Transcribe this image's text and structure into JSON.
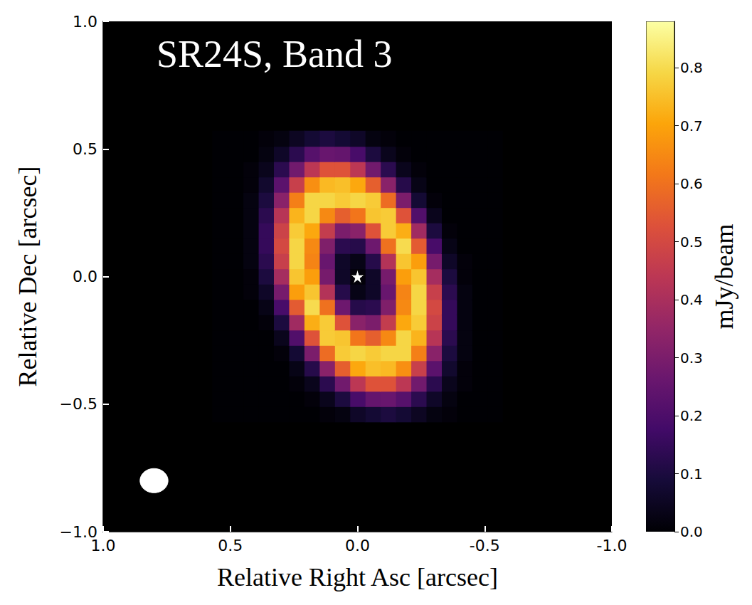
{
  "chart_data": {
    "type": "heatmap",
    "title": "SR24S, Band 3",
    "x_label": "Relative Right Asc [arcsec]",
    "y_label": "Relative Dec [arcsec]",
    "xlim": [
      1,
      -1
    ],
    "xticks": [
      {
        "value": 1,
        "label": "1.0"
      },
      0.5,
      {
        "value": 0,
        "label": "0.0"
      },
      -0.5,
      {
        "value": -1,
        "label": "-1.0"
      }
    ],
    "ylim": [
      -1,
      1
    ],
    "yticks": [
      {
        "value": -1,
        "label": "−1.0"
      },
      {
        "value": -0.5,
        "label": "−0.5"
      },
      {
        "value": 0,
        "label": "0.0"
      },
      0.5,
      {
        "value": 1,
        "label": "1.0"
      }
    ],
    "grid": false,
    "cells": {
      "x": [
        -0.54,
        -0.48,
        -0.42,
        -0.36,
        -0.3,
        -0.24,
        -0.18,
        -0.12,
        -0.06,
        0,
        0.06,
        0.12,
        0.18,
        0.24,
        0.3,
        0.36,
        0.42,
        0.48,
        0.54
      ],
      "y": [
        -0.54,
        -0.48,
        -0.42,
        -0.36,
        -0.3,
        -0.24,
        -0.18,
        -0.12,
        -0.06,
        0,
        0.06,
        0.12,
        0.18,
        0.24,
        0.3,
        0.36,
        0.42,
        0.48,
        0.54
      ],
      "values": [
        [
          0,
          0,
          0,
          0.01,
          0.02,
          0.05,
          0.08,
          0.1,
          0.08,
          0.06,
          0.02,
          0.01,
          0,
          0,
          0,
          0,
          0,
          0,
          0
        ],
        [
          0,
          0,
          0,
          0.02,
          0.06,
          0.13,
          0.22,
          0.26,
          0.25,
          0.19,
          0.1,
          0.04,
          0.01,
          0,
          0,
          0,
          0,
          0,
          0
        ],
        [
          0,
          0,
          0.01,
          0.04,
          0.13,
          0.28,
          0.44,
          0.53,
          0.53,
          0.44,
          0.28,
          0.13,
          0.04,
          0.01,
          0,
          0,
          0,
          0,
          0
        ],
        [
          0,
          0,
          0.01,
          0.07,
          0.23,
          0.47,
          0.66,
          0.74,
          0.75,
          0.71,
          0.56,
          0.33,
          0.12,
          0.03,
          0,
          0,
          0,
          0,
          0
        ],
        [
          0,
          0,
          0.02,
          0.1,
          0.33,
          0.63,
          0.79,
          0.79,
          0.77,
          0.79,
          0.77,
          0.59,
          0.3,
          0.08,
          0.01,
          0,
          0,
          0,
          0
        ],
        [
          0,
          0,
          0.02,
          0.13,
          0.43,
          0.73,
          0.79,
          0.65,
          0.56,
          0.61,
          0.76,
          0.77,
          0.53,
          0.21,
          0.04,
          0,
          0,
          0,
          0
        ],
        [
          0,
          0,
          0.02,
          0.15,
          0.48,
          0.77,
          0.71,
          0.46,
          0.3,
          0.33,
          0.53,
          0.77,
          0.72,
          0.38,
          0.1,
          0.01,
          0,
          0,
          0
        ],
        [
          0,
          0,
          0.02,
          0.15,
          0.5,
          0.79,
          0.65,
          0.31,
          0.13,
          0.12,
          0.27,
          0.6,
          0.8,
          0.55,
          0.19,
          0.03,
          0,
          0,
          0
        ],
        [
          0,
          0,
          0.02,
          0.13,
          0.47,
          0.79,
          0.64,
          0.26,
          0.06,
          0.03,
          0.12,
          0.42,
          0.76,
          0.69,
          0.29,
          0.06,
          0.01,
          0,
          0
        ],
        [
          0,
          0,
          0.01,
          0.1,
          0.39,
          0.76,
          0.69,
          0.29,
          0.06,
          0.01,
          0.06,
          0.29,
          0.69,
          0.76,
          0.39,
          0.1,
          0.01,
          0,
          0
        ],
        [
          0,
          0,
          0.01,
          0.06,
          0.29,
          0.69,
          0.76,
          0.42,
          0.12,
          0.03,
          0.06,
          0.26,
          0.64,
          0.79,
          0.47,
          0.13,
          0.02,
          0,
          0
        ],
        [
          0,
          0,
          0,
          0.03,
          0.19,
          0.55,
          0.8,
          0.6,
          0.27,
          0.12,
          0.13,
          0.31,
          0.65,
          0.79,
          0.5,
          0.15,
          0.02,
          0,
          0
        ],
        [
          0,
          0,
          0,
          0.01,
          0.1,
          0.38,
          0.72,
          0.77,
          0.53,
          0.33,
          0.3,
          0.46,
          0.71,
          0.77,
          0.48,
          0.15,
          0.02,
          0,
          0
        ],
        [
          0,
          0,
          0,
          0,
          0.04,
          0.21,
          0.53,
          0.77,
          0.76,
          0.61,
          0.56,
          0.65,
          0.79,
          0.73,
          0.43,
          0.13,
          0.02,
          0,
          0
        ],
        [
          0,
          0,
          0,
          0,
          0.01,
          0.08,
          0.3,
          0.59,
          0.77,
          0.79,
          0.77,
          0.79,
          0.79,
          0.63,
          0.33,
          0.1,
          0.02,
          0,
          0
        ],
        [
          0,
          0,
          0,
          0,
          0,
          0.03,
          0.12,
          0.33,
          0.56,
          0.71,
          0.75,
          0.74,
          0.66,
          0.47,
          0.23,
          0.07,
          0.01,
          0,
          0
        ],
        [
          0,
          0,
          0,
          0,
          0,
          0.01,
          0.04,
          0.13,
          0.28,
          0.44,
          0.53,
          0.53,
          0.44,
          0.28,
          0.13,
          0.04,
          0.01,
          0,
          0
        ],
        [
          0,
          0,
          0,
          0,
          0,
          0,
          0.01,
          0.04,
          0.1,
          0.19,
          0.25,
          0.26,
          0.22,
          0.13,
          0.06,
          0.02,
          0,
          0,
          0
        ],
        [
          0,
          0,
          0,
          0,
          0,
          0,
          0,
          0.01,
          0.02,
          0.06,
          0.08,
          0.1,
          0.08,
          0.05,
          0.02,
          0.01,
          0,
          0,
          0
        ]
      ]
    },
    "colorbar": {
      "label": "mJy/beam",
      "range": [
        0,
        0.88
      ],
      "ticks": [
        {
          "value": 0,
          "label": "0.0"
        },
        0.1,
        0.2,
        0.3,
        0.4,
        0.5,
        0.6,
        0.7,
        0.8
      ]
    },
    "star": {
      "x": 0,
      "y": 0,
      "marker": "star"
    },
    "beam": {
      "x": 0.8,
      "y": -0.8,
      "width": 0.11,
      "height": 0.095
    }
  }
}
